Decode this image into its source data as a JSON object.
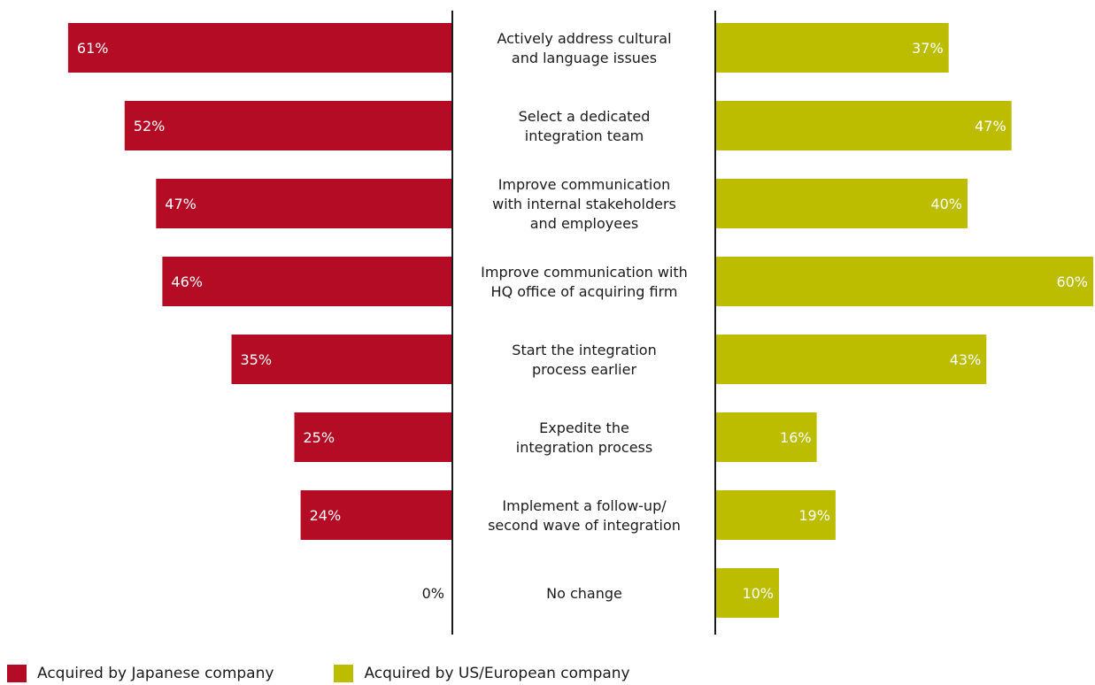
{
  "chart_data": {
    "type": "bar",
    "orientation": "horizontal-diverging",
    "categories": [
      [
        "Actively address cultural",
        "and language issues"
      ],
      [
        "Select a dedicated",
        "integration team"
      ],
      [
        "Improve communication",
        "with internal stakeholders",
        "and employees"
      ],
      [
        "Improve communication with",
        "HQ office of acquiring firm"
      ],
      [
        "Start the integration",
        "process earlier"
      ],
      [
        "Expedite the",
        "integration process"
      ],
      [
        "Implement a follow-up/",
        "second wave of integration"
      ],
      [
        "No change"
      ]
    ],
    "series": [
      {
        "name": "Acquired by Japanese company",
        "color": "#b30c24",
        "values": [
          61,
          52,
          47,
          46,
          35,
          25,
          24,
          0
        ],
        "labels": [
          "61%",
          "52%",
          "47%",
          "46%",
          "35%",
          "25%",
          "24%",
          "0%"
        ]
      },
      {
        "name": "Acquired by US/European company",
        "color": "#bcbc00",
        "values": [
          37,
          47,
          40,
          60,
          43,
          16,
          19,
          10
        ],
        "labels": [
          "37%",
          "47%",
          "40%",
          "60%",
          "43%",
          "16%",
          "19%",
          "10%"
        ]
      }
    ],
    "legend_position": "bottom-left",
    "grid": false
  }
}
